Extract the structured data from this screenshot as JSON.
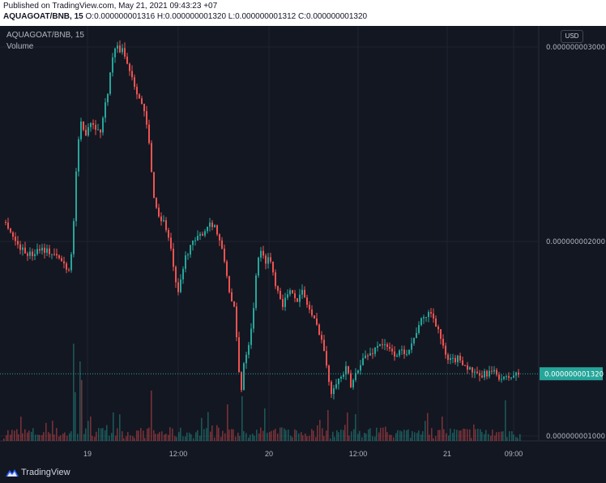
{
  "header": {
    "published": "Published on TradingView.com, May 21, 2021 09:43:23 +07",
    "symbol_line": "AQUAGOAT/BNB, 15",
    "ohlc": {
      "open_label": "O:",
      "open": "0.000000001316",
      "high_label": "H:",
      "high": "0.000000001320",
      "low_label": "L:",
      "low": "0.000000001312",
      "close_label": "C:",
      "close": "0.000000001320"
    }
  },
  "chart": {
    "symbol": "AQUAGOAT/BNB, 15",
    "volume_label": "Volume",
    "currency": "USD"
  },
  "footer": {
    "brand": "TradingView"
  },
  "colors": {
    "background": "#131722",
    "grid": "#1f2330",
    "up": "#26a69a",
    "down": "#ef5350",
    "last_price_badge": "#26a69a"
  },
  "icons": {
    "brand": "tradingview-logo-icon"
  },
  "chart_data": {
    "type": "candlestick",
    "y_tick_labels": [
      "0.000000003000",
      "0.000000002000",
      "0.000000001000"
    ],
    "y_ticks": [
      3e-09,
      2e-09,
      1e-09
    ],
    "ylim": [
      9.3e-10,
      3.1e-09
    ],
    "x_tick_labels": [
      "19",
      "12:00",
      "20",
      "12:00",
      "21",
      "09:00"
    ],
    "last_price": 1.32e-09,
    "last_price_label": "0.000000001320",
    "grid": true,
    "close_path_units_e9": [
      [
        0,
        2.1
      ],
      [
        8,
        2.09
      ],
      [
        18,
        2.0
      ],
      [
        28,
        1.95
      ],
      [
        38,
        1.93
      ],
      [
        48,
        1.97
      ],
      [
        58,
        1.95
      ],
      [
        66,
        1.93
      ],
      [
        75,
        1.9
      ],
      [
        85,
        1.85
      ],
      [
        90,
        2.1
      ],
      [
        94,
        2.45
      ],
      [
        99,
        2.6
      ],
      [
        104,
        2.55
      ],
      [
        110,
        2.62
      ],
      [
        116,
        2.6
      ],
      [
        122,
        2.55
      ],
      [
        128,
        2.68
      ],
      [
        133,
        2.8
      ],
      [
        138,
        2.95
      ],
      [
        142,
        3.0
      ],
      [
        146,
        2.98
      ],
      [
        150,
        3.0
      ],
      [
        155,
        2.92
      ],
      [
        160,
        2.88
      ],
      [
        164,
        2.82
      ],
      [
        170,
        2.75
      ],
      [
        176,
        2.68
      ],
      [
        182,
        2.55
      ],
      [
        186,
        2.35
      ],
      [
        190,
        2.2
      ],
      [
        196,
        2.12
      ],
      [
        202,
        2.1
      ],
      [
        208,
        2.0
      ],
      [
        214,
        1.85
      ],
      [
        218,
        1.7
      ],
      [
        222,
        1.8
      ],
      [
        228,
        1.92
      ],
      [
        234,
        1.98
      ],
      [
        240,
        2.0
      ],
      [
        246,
        2.03
      ],
      [
        252,
        2.06
      ],
      [
        258,
        2.1
      ],
      [
        264,
        2.08
      ],
      [
        270,
        2.0
      ],
      [
        276,
        1.9
      ],
      [
        280,
        1.8
      ],
      [
        284,
        1.7
      ],
      [
        288,
        1.65
      ],
      [
        292,
        1.45
      ],
      [
        296,
        1.2
      ],
      [
        300,
        1.38
      ],
      [
        306,
        1.48
      ],
      [
        312,
        1.65
      ],
      [
        316,
        1.9
      ],
      [
        320,
        1.95
      ],
      [
        326,
        1.9
      ],
      [
        332,
        1.92
      ],
      [
        338,
        1.8
      ],
      [
        342,
        1.75
      ],
      [
        348,
        1.68
      ],
      [
        354,
        1.72
      ],
      [
        360,
        1.75
      ],
      [
        366,
        1.7
      ],
      [
        372,
        1.74
      ],
      [
        378,
        1.68
      ],
      [
        386,
        1.6
      ],
      [
        392,
        1.55
      ],
      [
        398,
        1.47
      ],
      [
        403,
        1.32
      ],
      [
        408,
        1.23
      ],
      [
        413,
        1.28
      ],
      [
        420,
        1.3
      ],
      [
        427,
        1.35
      ],
      [
        432,
        1.25
      ],
      [
        438,
        1.32
      ],
      [
        444,
        1.38
      ],
      [
        450,
        1.41
      ],
      [
        456,
        1.42
      ],
      [
        462,
        1.45
      ],
      [
        468,
        1.48
      ],
      [
        474,
        1.46
      ],
      [
        480,
        1.44
      ],
      [
        486,
        1.42
      ],
      [
        494,
        1.43
      ],
      [
        502,
        1.44
      ],
      [
        510,
        1.5
      ],
      [
        516,
        1.58
      ],
      [
        522,
        1.6
      ],
      [
        528,
        1.64
      ],
      [
        534,
        1.61
      ],
      [
        540,
        1.55
      ],
      [
        546,
        1.45
      ],
      [
        552,
        1.38
      ],
      [
        558,
        1.39
      ],
      [
        566,
        1.4
      ],
      [
        574,
        1.36
      ],
      [
        582,
        1.33
      ],
      [
        590,
        1.3
      ],
      [
        598,
        1.32
      ],
      [
        606,
        1.33
      ],
      [
        614,
        1.31
      ],
      [
        620,
        1.29
      ],
      [
        626,
        1.3
      ],
      [
        632,
        1.31
      ],
      [
        640,
        1.32
      ]
    ]
  }
}
